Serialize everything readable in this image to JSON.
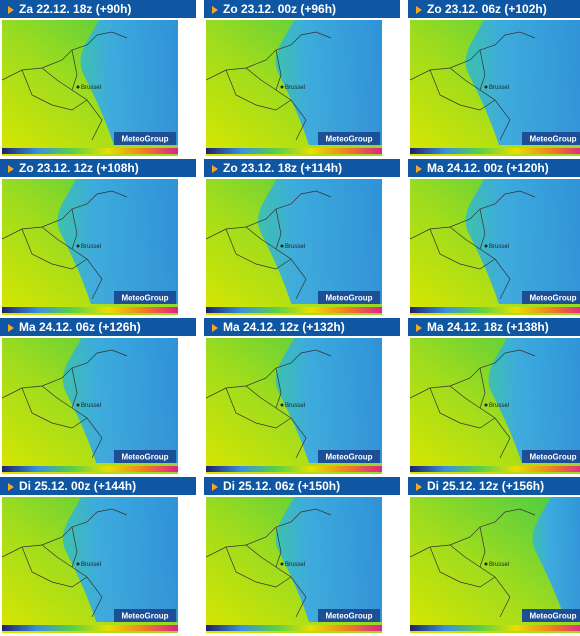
{
  "panels": [
    {
      "label": "Za 22.12. 18z (+90h)"
    },
    {
      "label": "Zo 23.12. 00z (+96h)"
    },
    {
      "label": "Zo 23.12. 06z (+102h)"
    },
    {
      "label": "Zo 23.12. 12z (+108h)"
    },
    {
      "label": "Zo 23.12. 18z (+114h)"
    },
    {
      "label": "Ma 24.12. 00z (+120h)"
    },
    {
      "label": "Ma 24.12. 06z (+126h)"
    },
    {
      "label": "Ma 24.12. 12z (+132h)"
    },
    {
      "label": "Ma 24.12. 18z (+138h)"
    },
    {
      "label": "Di 25.12. 00z (+144h)"
    },
    {
      "label": "Di 25.12. 06z (+150h)"
    },
    {
      "label": "Di 25.12. 12z (+156h)"
    }
  ],
  "city": "Brussel",
  "logo": "MeteoGroup"
}
